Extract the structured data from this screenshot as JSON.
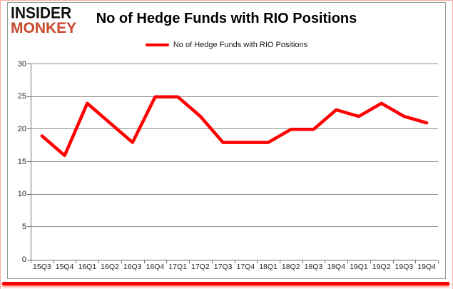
{
  "logo": {
    "line1": "INSIDER",
    "line2": "MONKEY"
  },
  "header": {
    "title": "No of Hedge Funds with RIO Positions"
  },
  "legend": {
    "label": "No of Hedge Funds with RIO Positions"
  },
  "colors": {
    "series_line": "#FF0000",
    "legend_swatch": "#FF0000",
    "logo_text": "#111111",
    "logo_accent": "#C8492C",
    "gridline": "#8E8E8E",
    "axis": "#707070",
    "chart_frame_border": "#9A9A9A",
    "outer_border": "#F2ABA4",
    "bottom_bar": "#FF0000"
  },
  "chart_data": {
    "type": "line",
    "title": "No of Hedge Funds with RIO Positions",
    "categories": [
      "15Q3",
      "15Q4",
      "16Q1",
      "16Q2",
      "16Q3",
      "16Q4",
      "17Q1",
      "17Q2",
      "17Q3",
      "17Q4",
      "18Q1",
      "18Q2",
      "18Q3",
      "18Q4",
      "19Q1",
      "19Q2",
      "19Q3",
      "19Q4"
    ],
    "series": [
      {
        "name": "No of Hedge Funds with RIO Positions",
        "color": "#FF0000",
        "values": [
          19,
          16,
          24,
          21,
          18,
          25,
          25,
          22,
          18,
          18,
          18,
          20,
          20,
          23,
          22,
          24,
          22,
          21
        ]
      }
    ],
    "xlabel": "",
    "ylabel": "",
    "ylim": [
      0,
      30
    ],
    "yticks": [
      0,
      5,
      10,
      15,
      20,
      25,
      30
    ],
    "grid": true,
    "legend_position": "top-center"
  }
}
